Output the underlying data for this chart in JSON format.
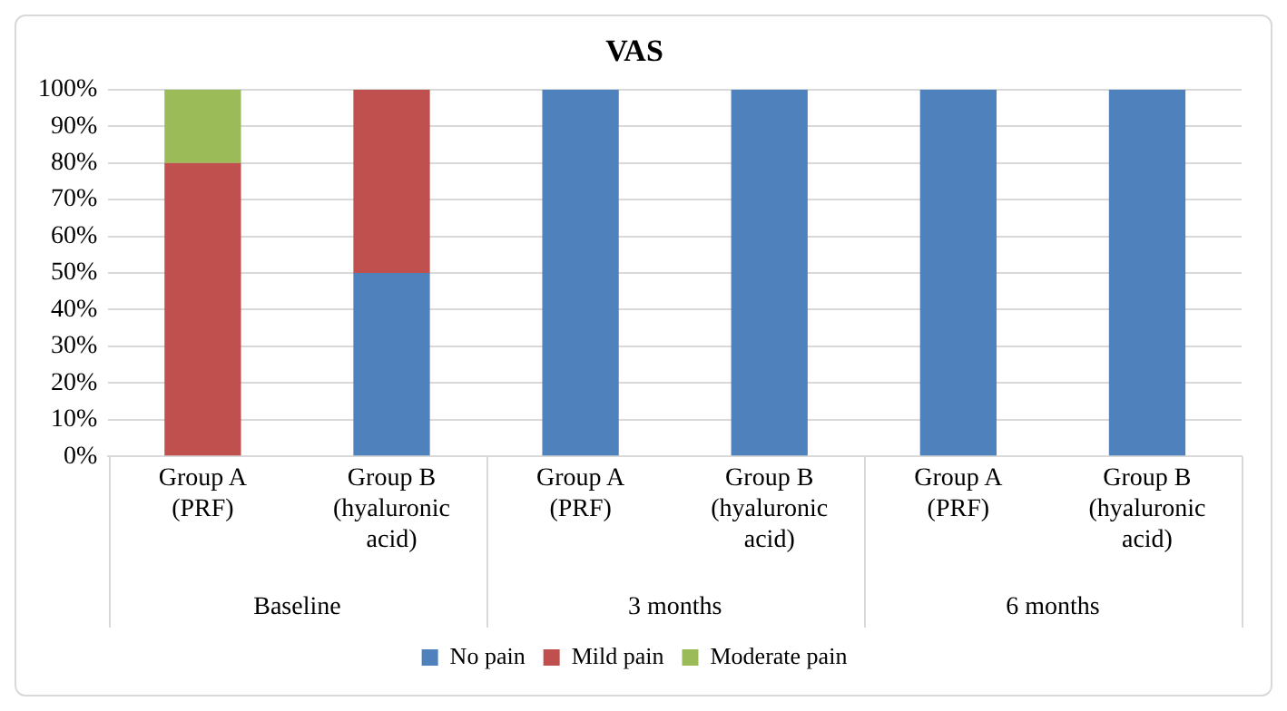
{
  "chart_data": {
    "type": "bar",
    "title": "VAS",
    "stacked": true,
    "categories": [
      "Group A (PRF)",
      "Group B (hyaluronic acid)",
      "Group A (PRF)",
      "Group B (hyaluronic acid)",
      "Group A (PRF)",
      "Group B (hyaluronic acid)"
    ],
    "series": [
      {
        "name": "No pain",
        "color": "#4f81bd",
        "values": [
          0,
          50,
          100,
          100,
          100,
          100
        ]
      },
      {
        "name": "Mild pain",
        "color": "#c0504d",
        "values": [
          80,
          50,
          0,
          0,
          0,
          0
        ]
      },
      {
        "name": "Moderate pain",
        "color": "#9bbb59",
        "values": [
          20,
          0,
          0,
          0,
          0,
          0
        ]
      }
    ],
    "ylim": [
      0,
      100
    ],
    "yticks": [
      {
        "value": 0,
        "label": "0%"
      },
      {
        "value": 10,
        "label": "10%"
      },
      {
        "value": 20,
        "label": "20%"
      },
      {
        "value": 30,
        "label": "30%"
      },
      {
        "value": 40,
        "label": "40%"
      },
      {
        "value": 50,
        "label": "50%"
      },
      {
        "value": 60,
        "label": "60%"
      },
      {
        "value": 70,
        "label": "70%"
      },
      {
        "value": 80,
        "label": "80%"
      },
      {
        "value": 90,
        "label": "90%"
      },
      {
        "value": 100,
        "label": "100%"
      }
    ],
    "grid": "y",
    "legend": "bottom",
    "annotations": [
      "Baseline",
      "3 months",
      "6 months"
    ]
  }
}
